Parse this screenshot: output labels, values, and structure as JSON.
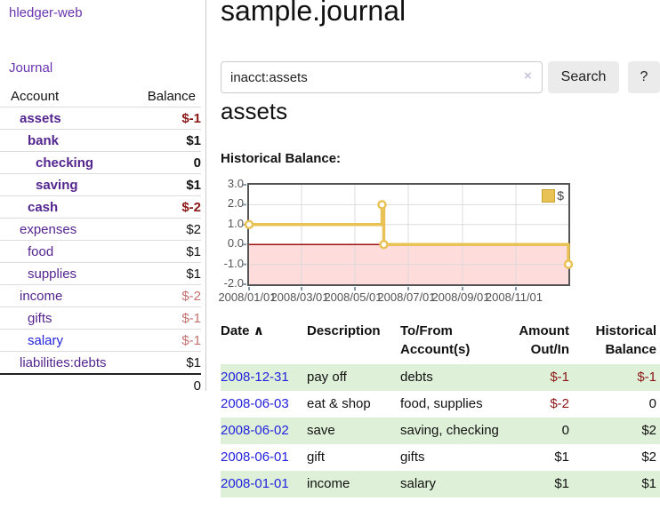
{
  "theme": {
    "link_purple": "#6a35b0",
    "account_purple": "#54258f",
    "link_blue": "#2323dd",
    "neg_strong": "#8b1717",
    "neg_soft": "#c4716f",
    "row_green": "#dff0d8",
    "gold": "#e9c256"
  },
  "app": {
    "title": "hledger-web"
  },
  "sidebar": {
    "journal_label": "Journal",
    "accounts": {
      "headers": [
        "Account",
        "Balance"
      ],
      "rows": [
        {
          "name": "assets",
          "balance": "$-1"
        },
        {
          "name": "bank",
          "balance": "$1"
        },
        {
          "name": "checking",
          "balance": "0"
        },
        {
          "name": "saving",
          "balance": "$1"
        },
        {
          "name": "cash",
          "balance": "$-2"
        },
        {
          "name": "expenses",
          "balance": "$2"
        },
        {
          "name": "food",
          "balance": "$1"
        },
        {
          "name": "supplies",
          "balance": "$1"
        },
        {
          "name": "income",
          "balance": "$-2"
        },
        {
          "name": "gifts",
          "balance": "$-1"
        },
        {
          "name": "salary",
          "balance": "$-1"
        },
        {
          "name": "liabilities:debts",
          "balance": "$1"
        }
      ],
      "total": "0"
    }
  },
  "main": {
    "title": "sample.journal",
    "search": {
      "value": "inacct:assets",
      "clear_icon": "×",
      "button_label": "Search",
      "help_label": "?"
    },
    "account_heading": "assets",
    "chart_label": "Historical Balance:"
  },
  "chart_data": {
    "type": "line",
    "title": "Historical Balance",
    "step": true,
    "legend_label": "$",
    "legend_position": "top-right",
    "grid": true,
    "x_unit": "days since 2008-01-01",
    "xlim": [
      0,
      365
    ],
    "ylim": [
      -2,
      3
    ],
    "yticks": [
      3.0,
      2.0,
      1.0,
      0.0,
      -1.0,
      -2.0
    ],
    "ytick_labels": [
      "3.0",
      "2.0",
      "1.0",
      "0.0",
      "-1.0",
      "-2.0"
    ],
    "xticks": [
      0,
      60,
      121,
      182,
      244,
      305
    ],
    "xtick_labels": [
      "2008/01/01",
      "2008/03/01",
      "2008/05/01",
      "2008/07/01",
      "2008/09/01",
      "2008/11/01"
    ],
    "series": [
      {
        "name": "$",
        "color": "#e9c256",
        "point_dates": [
          "2008-01-01",
          "2008-06-01",
          "2008-06-03",
          "2008-12-31"
        ],
        "points": [
          [
            0,
            1
          ],
          [
            152,
            2
          ],
          [
            154,
            0
          ],
          [
            365,
            -1
          ]
        ],
        "line_vertices": [
          [
            0,
            1
          ],
          [
            152,
            1
          ],
          [
            152,
            2
          ],
          [
            154,
            2
          ],
          [
            154,
            0
          ],
          [
            365,
            0
          ],
          [
            365,
            -1
          ]
        ]
      }
    ],
    "negative_region": {
      "from": -2,
      "to": 0,
      "fill": "#ffdcdc",
      "line_color": "#a01212"
    }
  },
  "register": {
    "headers": {
      "date": "Date",
      "sort_icon": "∧",
      "description": "Description",
      "accounts": "To/From Account(s)",
      "amount": "Amount Out/In",
      "balance": "Historical Balance"
    },
    "rows": [
      {
        "date": "2008-12-31",
        "description": "pay off",
        "accounts": "debts",
        "amount": "$-1",
        "balance": "$-1"
      },
      {
        "date": "2008-06-03",
        "description": "eat & shop",
        "accounts": "food, supplies",
        "amount": "$-2",
        "balance": "0"
      },
      {
        "date": "2008-06-02",
        "description": "save",
        "accounts": "saving, checking",
        "amount": "0",
        "balance": "$2"
      },
      {
        "date": "2008-06-01",
        "description": "gift",
        "accounts": "gifts",
        "amount": "$1",
        "balance": "$2"
      },
      {
        "date": "2008-01-01",
        "description": "income",
        "accounts": "salary",
        "amount": "$1",
        "balance": "$1"
      }
    ]
  }
}
